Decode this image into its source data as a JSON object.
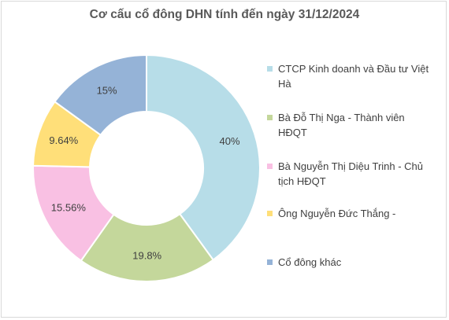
{
  "chart_data": {
    "type": "pie",
    "donut": true,
    "title": "Cơ cấu cổ đông DHN tính đến ngày 31/12/2024",
    "legend_position": "right",
    "slices": [
      {
        "name": "CTCP Kinh doanh và Đầu tư Việt Hà",
        "value": 40,
        "label": "40%",
        "color": "#b7dde8"
      },
      {
        "name": "Bà Đỗ Thị Nga - Thành viên HĐQT",
        "value": 19.8,
        "label": "19.8%",
        "color": "#c4d79b"
      },
      {
        "name": "Bà Nguyễn Thị Diệu Trinh - Chủ tịch HĐQT",
        "value": 15.56,
        "label": "15.56%",
        "color": "#f9c0e3"
      },
      {
        "name": "Ông Nguyễn Đức Thắng -",
        "value": 9.64,
        "label": "9.64%",
        "color": "#ffdf79"
      },
      {
        "name": "Cổ đông khác",
        "value": 15,
        "label": "15%",
        "color": "#95b3d7"
      }
    ]
  }
}
